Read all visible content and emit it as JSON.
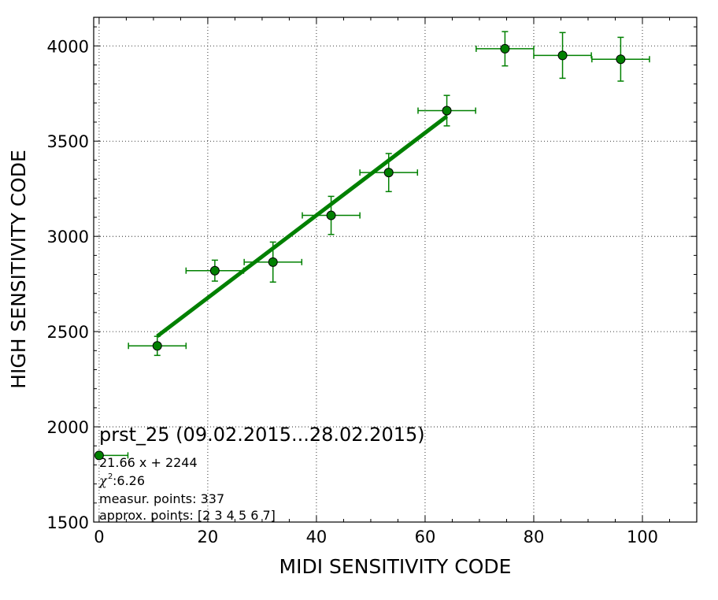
{
  "chart_data": {
    "type": "scatter",
    "xlabel": "MIDI SENSITIVITY CODE",
    "ylabel": "HIGH SENSITIVITY CODE",
    "xlim": [
      -1,
      110
    ],
    "ylim": [
      1500,
      4150
    ],
    "x_ticks": [
      0,
      20,
      40,
      60,
      80,
      100
    ],
    "y_ticks": [
      1500,
      2000,
      2500,
      3000,
      3500,
      4000
    ],
    "grid": true,
    "color": "#008000",
    "series": [
      {
        "points": [
          {
            "x": 10.7,
            "y": 2425,
            "xerr": 5.3,
            "yerr": 50
          },
          {
            "x": 21.3,
            "y": 2820,
            "xerr": 5.3,
            "yerr": 55
          },
          {
            "x": 32.0,
            "y": 2865,
            "xerr": 5.3,
            "yerr": 105
          },
          {
            "x": 42.7,
            "y": 3110,
            "xerr": 5.3,
            "yerr": 100
          },
          {
            "x": 53.3,
            "y": 3335,
            "xerr": 5.3,
            "yerr": 100
          },
          {
            "x": 64.0,
            "y": 3660,
            "xerr": 5.3,
            "yerr": 80
          },
          {
            "x": 74.7,
            "y": 3985,
            "xerr": 5.3,
            "yerr": 90
          },
          {
            "x": 85.3,
            "y": 3950,
            "xerr": 5.3,
            "yerr": 120
          },
          {
            "x": 96.0,
            "y": 3930,
            "xerr": 5.3,
            "yerr": 115
          }
        ]
      }
    ],
    "fit": {
      "slope": 21.66,
      "intercept": 2244,
      "x_range": [
        10.7,
        64.0
      ]
    },
    "legend_marker": {
      "x": 0,
      "y": 1850,
      "xerr": 5.3
    },
    "annotations": {
      "title": "prst_25 (09.02.2015...28.02.2015)",
      "equation": "21.66 x + 2244",
      "chi_symbol": "χ",
      "chi_sup": "2",
      "chi_value": " :6.26",
      "measur": "measur. points: 337",
      "approx": "approx. points: [2 3 4 5 6 7]"
    }
  }
}
